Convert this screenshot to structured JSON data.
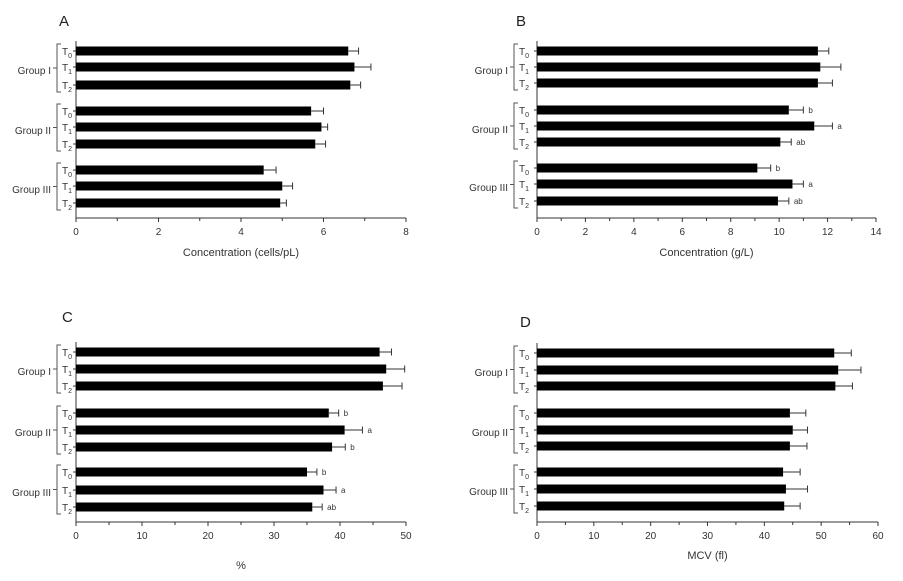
{
  "chart_data": [
    {
      "panel": "A",
      "type": "bar",
      "orientation": "horizontal",
      "xlabel": "Concentration (cells/pL)",
      "xlim": [
        0,
        8
      ],
      "xticks": [
        0,
        2,
        4,
        6,
        8
      ],
      "groups": [
        {
          "name": "Group I",
          "bars": [
            {
              "label": "T",
              "sub": "0",
              "value": 6.6,
              "error": 0.25,
              "sig": ""
            },
            {
              "label": "T",
              "sub": "1",
              "value": 6.75,
              "error": 0.4,
              "sig": ""
            },
            {
              "label": "T",
              "sub": "2",
              "value": 6.65,
              "error": 0.25,
              "sig": ""
            }
          ]
        },
        {
          "name": "Group II",
          "bars": [
            {
              "label": "T",
              "sub": "0",
              "value": 5.7,
              "error": 0.3,
              "sig": ""
            },
            {
              "label": "T",
              "sub": "1",
              "value": 5.95,
              "error": 0.15,
              "sig": ""
            },
            {
              "label": "T",
              "sub": "2",
              "value": 5.8,
              "error": 0.25,
              "sig": ""
            }
          ]
        },
        {
          "name": "Group III",
          "bars": [
            {
              "label": "T",
              "sub": "0",
              "value": 4.55,
              "error": 0.3,
              "sig": ""
            },
            {
              "label": "T",
              "sub": "1",
              "value": 5.0,
              "error": 0.25,
              "sig": ""
            },
            {
              "label": "T",
              "sub": "2",
              "value": 4.95,
              "error": 0.15,
              "sig": ""
            }
          ]
        }
      ]
    },
    {
      "panel": "B",
      "type": "bar",
      "orientation": "horizontal",
      "xlabel": "Concentration (g/L)",
      "xlim": [
        0,
        14
      ],
      "xticks": [
        0,
        2,
        4,
        6,
        8,
        10,
        12,
        14
      ],
      "groups": [
        {
          "name": "Group I",
          "bars": [
            {
              "label": "T",
              "sub": "0",
              "value": 11.6,
              "error": 0.45,
              "sig": ""
            },
            {
              "label": "T",
              "sub": "1",
              "value": 11.7,
              "error": 0.85,
              "sig": ""
            },
            {
              "label": "T",
              "sub": "2",
              "value": 11.6,
              "error": 0.6,
              "sig": ""
            }
          ]
        },
        {
          "name": "Group II",
          "bars": [
            {
              "label": "T",
              "sub": "0",
              "value": 10.4,
              "error": 0.6,
              "sig": "b"
            },
            {
              "label": "T",
              "sub": "1",
              "value": 11.45,
              "error": 0.75,
              "sig": "a"
            },
            {
              "label": "T",
              "sub": "2",
              "value": 10.05,
              "error": 0.45,
              "sig": "ab"
            }
          ]
        },
        {
          "name": "Group III",
          "bars": [
            {
              "label": "T",
              "sub": "0",
              "value": 9.1,
              "error": 0.55,
              "sig": "b"
            },
            {
              "label": "T",
              "sub": "1",
              "value": 10.55,
              "error": 0.45,
              "sig": "a"
            },
            {
              "label": "T",
              "sub": "2",
              "value": 9.95,
              "error": 0.45,
              "sig": "ab"
            }
          ]
        }
      ]
    },
    {
      "panel": "C",
      "type": "bar",
      "orientation": "horizontal",
      "xlabel": "%",
      "xlim": [
        0,
        50
      ],
      "xticks": [
        0,
        10,
        20,
        30,
        40,
        50
      ],
      "groups": [
        {
          "name": "Group I",
          "bars": [
            {
              "label": "T",
              "sub": "0",
              "value": 46.0,
              "error": 1.8,
              "sig": ""
            },
            {
              "label": "T",
              "sub": "1",
              "value": 47.0,
              "error": 2.8,
              "sig": ""
            },
            {
              "label": "T",
              "sub": "2",
              "value": 46.5,
              "error": 2.9,
              "sig": ""
            }
          ]
        },
        {
          "name": "Group II",
          "bars": [
            {
              "label": "T",
              "sub": "0",
              "value": 38.3,
              "error": 1.5,
              "sig": "b"
            },
            {
              "label": "T",
              "sub": "1",
              "value": 40.7,
              "error": 2.7,
              "sig": "a"
            },
            {
              "label": "T",
              "sub": "2",
              "value": 38.8,
              "error": 2.0,
              "sig": "b"
            }
          ]
        },
        {
          "name": "Group III",
          "bars": [
            {
              "label": "T",
              "sub": "0",
              "value": 35.0,
              "error": 1.5,
              "sig": "b"
            },
            {
              "label": "T",
              "sub": "1",
              "value": 37.5,
              "error": 1.9,
              "sig": "a"
            },
            {
              "label": "T",
              "sub": "2",
              "value": 35.8,
              "error": 1.5,
              "sig": "ab"
            }
          ]
        }
      ]
    },
    {
      "panel": "D",
      "type": "bar",
      "orientation": "horizontal",
      "xlabel": "MCV (fl)",
      "xlim": [
        0,
        60
      ],
      "xticks": [
        0,
        10,
        20,
        30,
        40,
        50,
        60
      ],
      "groups": [
        {
          "name": "Group I",
          "bars": [
            {
              "label": "T",
              "sub": "0",
              "value": 52.3,
              "error": 3.0,
              "sig": ""
            },
            {
              "label": "T",
              "sub": "1",
              "value": 53.0,
              "error": 4.0,
              "sig": ""
            },
            {
              "label": "T",
              "sub": "2",
              "value": 52.5,
              "error": 3.0,
              "sig": ""
            }
          ]
        },
        {
          "name": "Group II",
          "bars": [
            {
              "label": "T",
              "sub": "0",
              "value": 44.5,
              "error": 2.8,
              "sig": ""
            },
            {
              "label": "T",
              "sub": "1",
              "value": 45.0,
              "error": 2.6,
              "sig": ""
            },
            {
              "label": "T",
              "sub": "2",
              "value": 44.5,
              "error": 3.0,
              "sig": ""
            }
          ]
        },
        {
          "name": "Group III",
          "bars": [
            {
              "label": "T",
              "sub": "0",
              "value": 43.3,
              "error": 3.0,
              "sig": ""
            },
            {
              "label": "T",
              "sub": "1",
              "value": 43.8,
              "error": 3.8,
              "sig": ""
            },
            {
              "label": "T",
              "sub": "2",
              "value": 43.5,
              "error": 2.8,
              "sig": ""
            }
          ]
        }
      ]
    }
  ]
}
